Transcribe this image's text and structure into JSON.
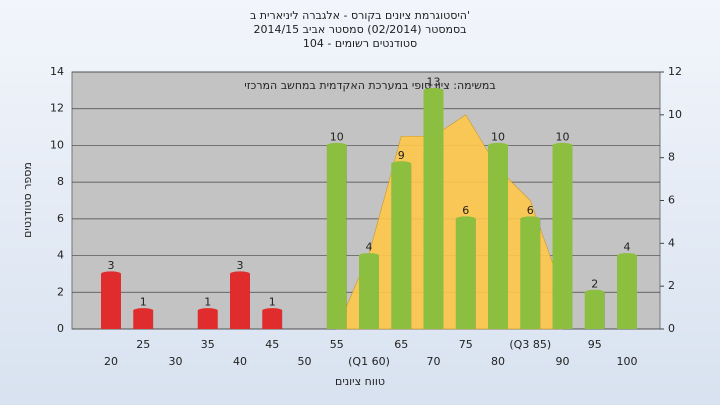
{
  "chart_data": {
    "type": "bar",
    "title": [
      "היסטוגרמת ציונים בקורס - אלגברה ליניארית ב'",
      "בסמסטר (02/2014) סמסטר אביב 2014/15",
      "סטודנטים רשומים - 104"
    ],
    "annotation": "במשימה: ציון סופי במערכת האקדמית במחשב המרכזי",
    "x_label": "טווח ציונים",
    "y_label": "מספר סטודנטים",
    "categories": [
      "20",
      "25",
      "30",
      "35",
      "40",
      "45",
      "50",
      "55",
      "(Q1 60)",
      "65",
      "70",
      "75",
      "80",
      "(Q3 85)",
      "90",
      "95",
      "100"
    ],
    "series": [
      {
        "color": "#e02c2c",
        "values": [
          3,
          1,
          null,
          1,
          3,
          1,
          null,
          null,
          null,
          null,
          null,
          null,
          null,
          null,
          null,
          null,
          null
        ]
      },
      {
        "color": "#8cbf3f",
        "values": [
          null,
          null,
          null,
          null,
          null,
          null,
          null,
          10,
          4,
          9,
          13,
          6,
          10,
          6,
          10,
          2,
          4
        ]
      },
      {
        "type": "area",
        "axis": "y2",
        "color": "#ffc84a",
        "values": [
          null,
          null,
          null,
          null,
          null,
          null,
          null,
          0,
          3.5,
          9,
          9,
          10,
          7.5,
          6,
          1.8,
          null,
          null
        ]
      }
    ],
    "ylim": [
      0,
      14
    ],
    "yticks": [
      0,
      2,
      4,
      6,
      8,
      10,
      12,
      14
    ],
    "y2lim": [
      0,
      12
    ],
    "y2ticks": [
      0,
      2,
      4,
      6,
      8,
      10,
      12
    ],
    "grid": true
  }
}
